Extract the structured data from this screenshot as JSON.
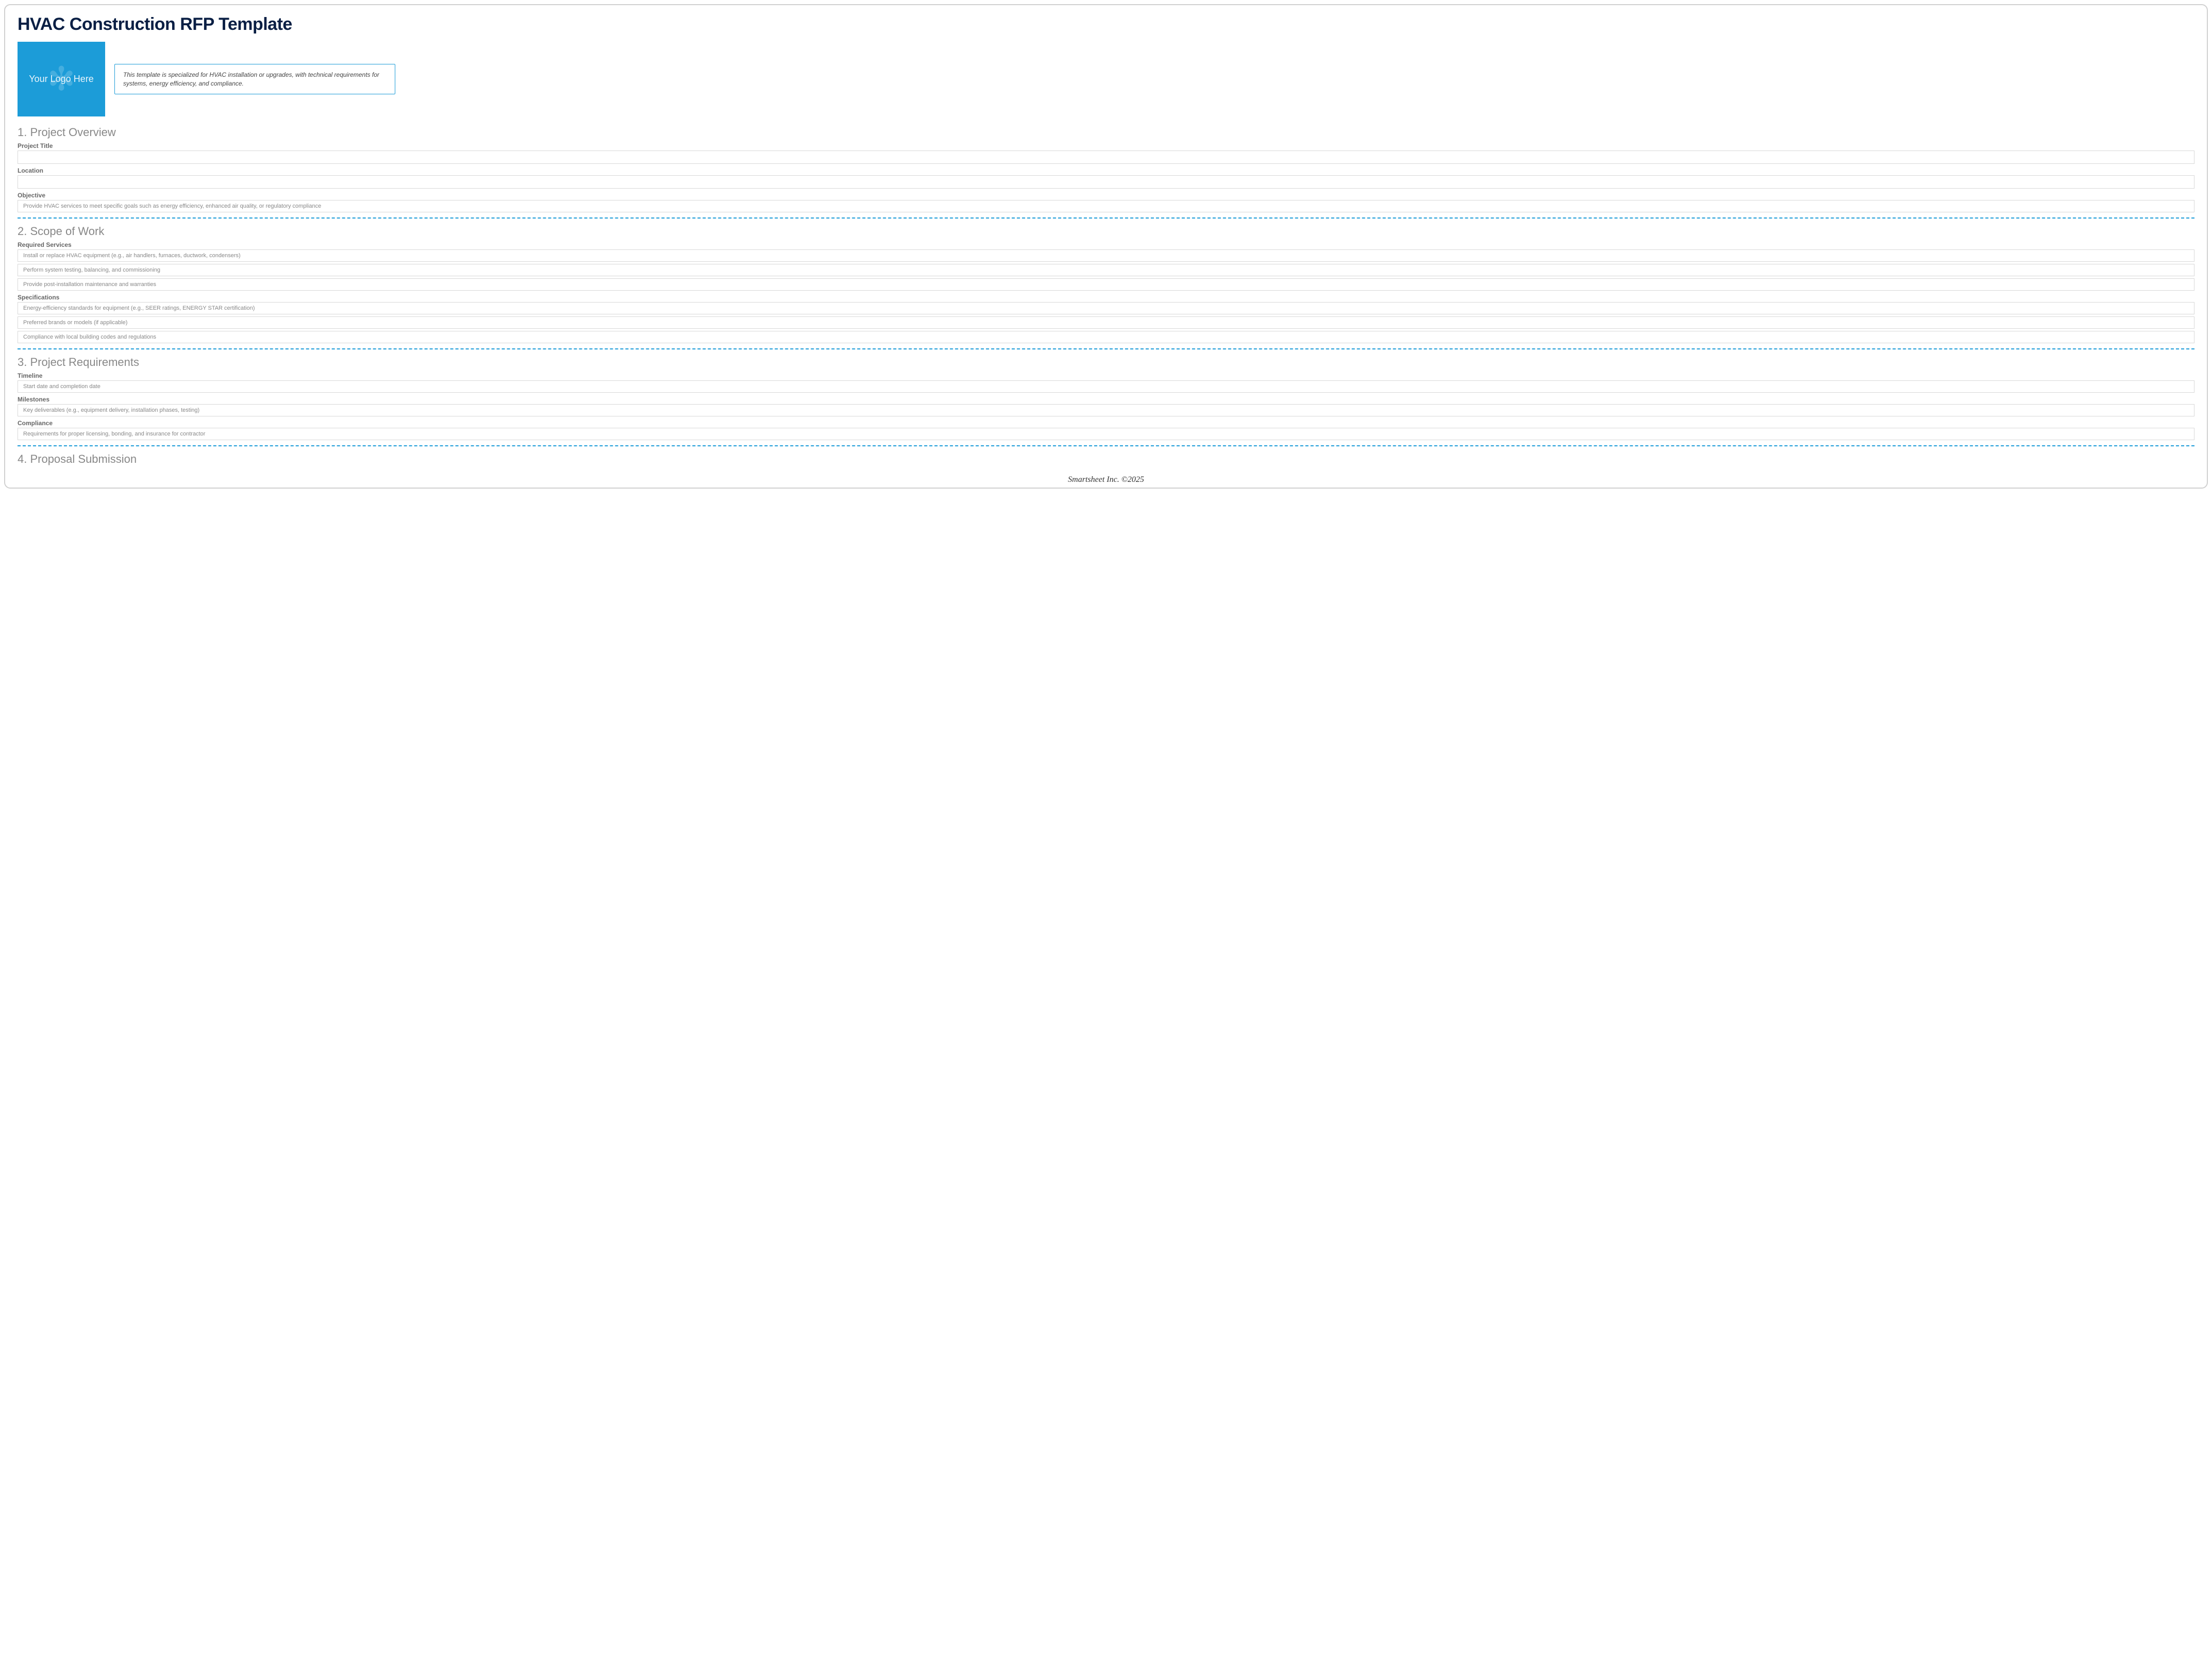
{
  "title": "HVAC Construction RFP Template",
  "logo_placeholder": "Your Logo Here",
  "description": "This template is specialized for HVAC installation or upgrades, with technical requirements for systems, energy efficiency, and compliance.",
  "colors": {
    "title": "#0a1f44",
    "accent": "#1c9cd8",
    "heading_gray": "#888888",
    "label_gray": "#666666",
    "placeholder_gray": "#888888",
    "border_gray": "#d8d8d8"
  },
  "sections": {
    "s1": {
      "heading": "1. Project Overview",
      "project_title_label": "Project Title",
      "location_label": "Location",
      "objective_label": "Objective",
      "objective_placeholder": "Provide HVAC services to meet specific goals such as energy efficiency, enhanced air quality, or regulatory compliance"
    },
    "s2": {
      "heading": "2. Scope of Work",
      "required_services_label": "Required Services",
      "rs1": "Install or replace HVAC equipment (e.g., air handlers, furnaces, ductwork, condensers)",
      "rs2": "Perform system testing, balancing, and commissioning",
      "rs3": "Provide post-installation maintenance and warranties",
      "specifications_label": "Specifications",
      "sp1": "Energy-efficiency standards for equipment (e.g., SEER ratings, ENERGY STAR certification)",
      "sp2": "Preferred brands or models (if applicable)",
      "sp3": "Compliance with local building codes and regulations"
    },
    "s3": {
      "heading": "3. Project Requirements",
      "timeline_label": "Timeline",
      "timeline_placeholder": "Start date and completion date",
      "milestones_label": "Milestones",
      "milestones_placeholder": "Key deliverables (e.g., equipment delivery, installation phases, testing)",
      "compliance_label": "Compliance",
      "compliance_placeholder": "Requirements for proper licensing, bonding, and insurance for contractor"
    },
    "s4": {
      "heading": "4. Proposal Submission"
    }
  },
  "footer": "Smartsheet Inc. ©2025"
}
